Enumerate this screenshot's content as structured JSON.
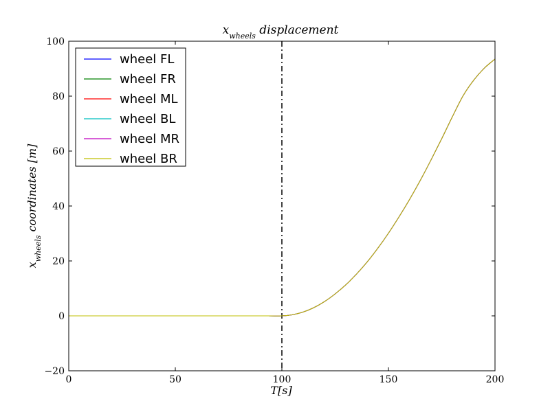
{
  "chart_data": {
    "type": "line",
    "title": "x_wheels displacement",
    "title_main": "x",
    "title_sub": "wheels",
    "title_rest": " displacement",
    "xlabel": "T[s]",
    "ylabel_main": "x",
    "ylabel_sub": "wheels",
    "ylabel_rest": " coordinates [m]",
    "xlim": [
      0,
      200
    ],
    "ylim": [
      -20,
      100
    ],
    "xticks": [
      0,
      50,
      100,
      150,
      200
    ],
    "yticks": [
      -20,
      0,
      20,
      40,
      60,
      80,
      100
    ],
    "xtick_labels": [
      "0",
      "50",
      "100",
      "150",
      "200"
    ],
    "ytick_labels": [
      "−20",
      "0",
      "20",
      "40",
      "60",
      "80",
      "100"
    ],
    "grid": false,
    "legend_position": "top-left",
    "vline": {
      "x": 100,
      "style": "dash-dot",
      "color": "#000000"
    },
    "x": [
      0,
      10,
      20,
      30,
      40,
      50,
      60,
      70,
      80,
      90,
      100,
      105,
      110,
      115,
      120,
      125,
      130,
      135,
      140,
      145,
      150,
      155,
      160,
      165,
      170,
      175,
      180,
      185,
      190,
      195,
      200
    ],
    "series": [
      {
        "name": "wheel FL",
        "color": "#0000ff",
        "values": [
          0,
          0,
          0,
          0,
          0,
          0,
          0,
          0,
          0,
          0,
          0,
          0.4,
          1.4,
          3.0,
          5.2,
          8.0,
          11.3,
          15.2,
          19.6,
          24.6,
          30.1,
          36.1,
          42.5,
          49.4,
          56.8,
          64.5,
          72.5,
          80.1,
          85.8,
          90.2,
          93.5
        ]
      },
      {
        "name": "wheel FR",
        "color": "#008000",
        "values": [
          0,
          0,
          0,
          0,
          0,
          0,
          0,
          0,
          0,
          0,
          0,
          0.4,
          1.4,
          3.0,
          5.2,
          8.0,
          11.3,
          15.2,
          19.6,
          24.6,
          30.1,
          36.1,
          42.5,
          49.4,
          56.8,
          64.5,
          72.5,
          80.1,
          85.8,
          90.2,
          93.5
        ]
      },
      {
        "name": "wheel ML",
        "color": "#ff0000",
        "values": [
          0,
          0,
          0,
          0,
          0,
          0,
          0,
          0,
          0,
          0,
          0,
          0.4,
          1.4,
          3.0,
          5.2,
          8.0,
          11.3,
          15.2,
          19.6,
          24.6,
          30.1,
          36.1,
          42.5,
          49.4,
          56.8,
          64.5,
          72.5,
          80.1,
          85.8,
          90.2,
          93.5
        ]
      },
      {
        "name": "wheel BL",
        "color": "#00bfbf",
        "values": [
          0,
          0,
          0,
          0,
          0,
          0,
          0,
          0,
          0,
          0,
          0,
          0.4,
          1.4,
          3.0,
          5.2,
          8.0,
          11.3,
          15.2,
          19.6,
          24.6,
          30.1,
          36.1,
          42.5,
          49.4,
          56.8,
          64.5,
          72.5,
          80.1,
          85.8,
          90.2,
          93.5
        ]
      },
      {
        "name": "wheel MR",
        "color": "#bf00bf",
        "values": [
          0,
          0,
          0,
          0,
          0,
          0,
          0,
          0,
          0,
          0,
          0,
          0.4,
          1.4,
          3.0,
          5.2,
          8.0,
          11.3,
          15.2,
          19.6,
          24.6,
          30.1,
          36.1,
          42.5,
          49.4,
          56.8,
          64.5,
          72.5,
          80.1,
          85.8,
          90.2,
          93.5
        ]
      },
      {
        "name": "wheel BR",
        "color": "#bfbf00",
        "values": [
          0,
          0,
          0,
          0,
          0,
          0,
          0,
          0,
          0,
          0,
          0,
          0.4,
          1.4,
          3.0,
          5.2,
          8.0,
          11.3,
          15.2,
          19.6,
          24.6,
          30.1,
          36.1,
          42.5,
          49.4,
          56.8,
          64.5,
          72.5,
          80.1,
          85.8,
          90.2,
          93.5
        ]
      }
    ]
  }
}
